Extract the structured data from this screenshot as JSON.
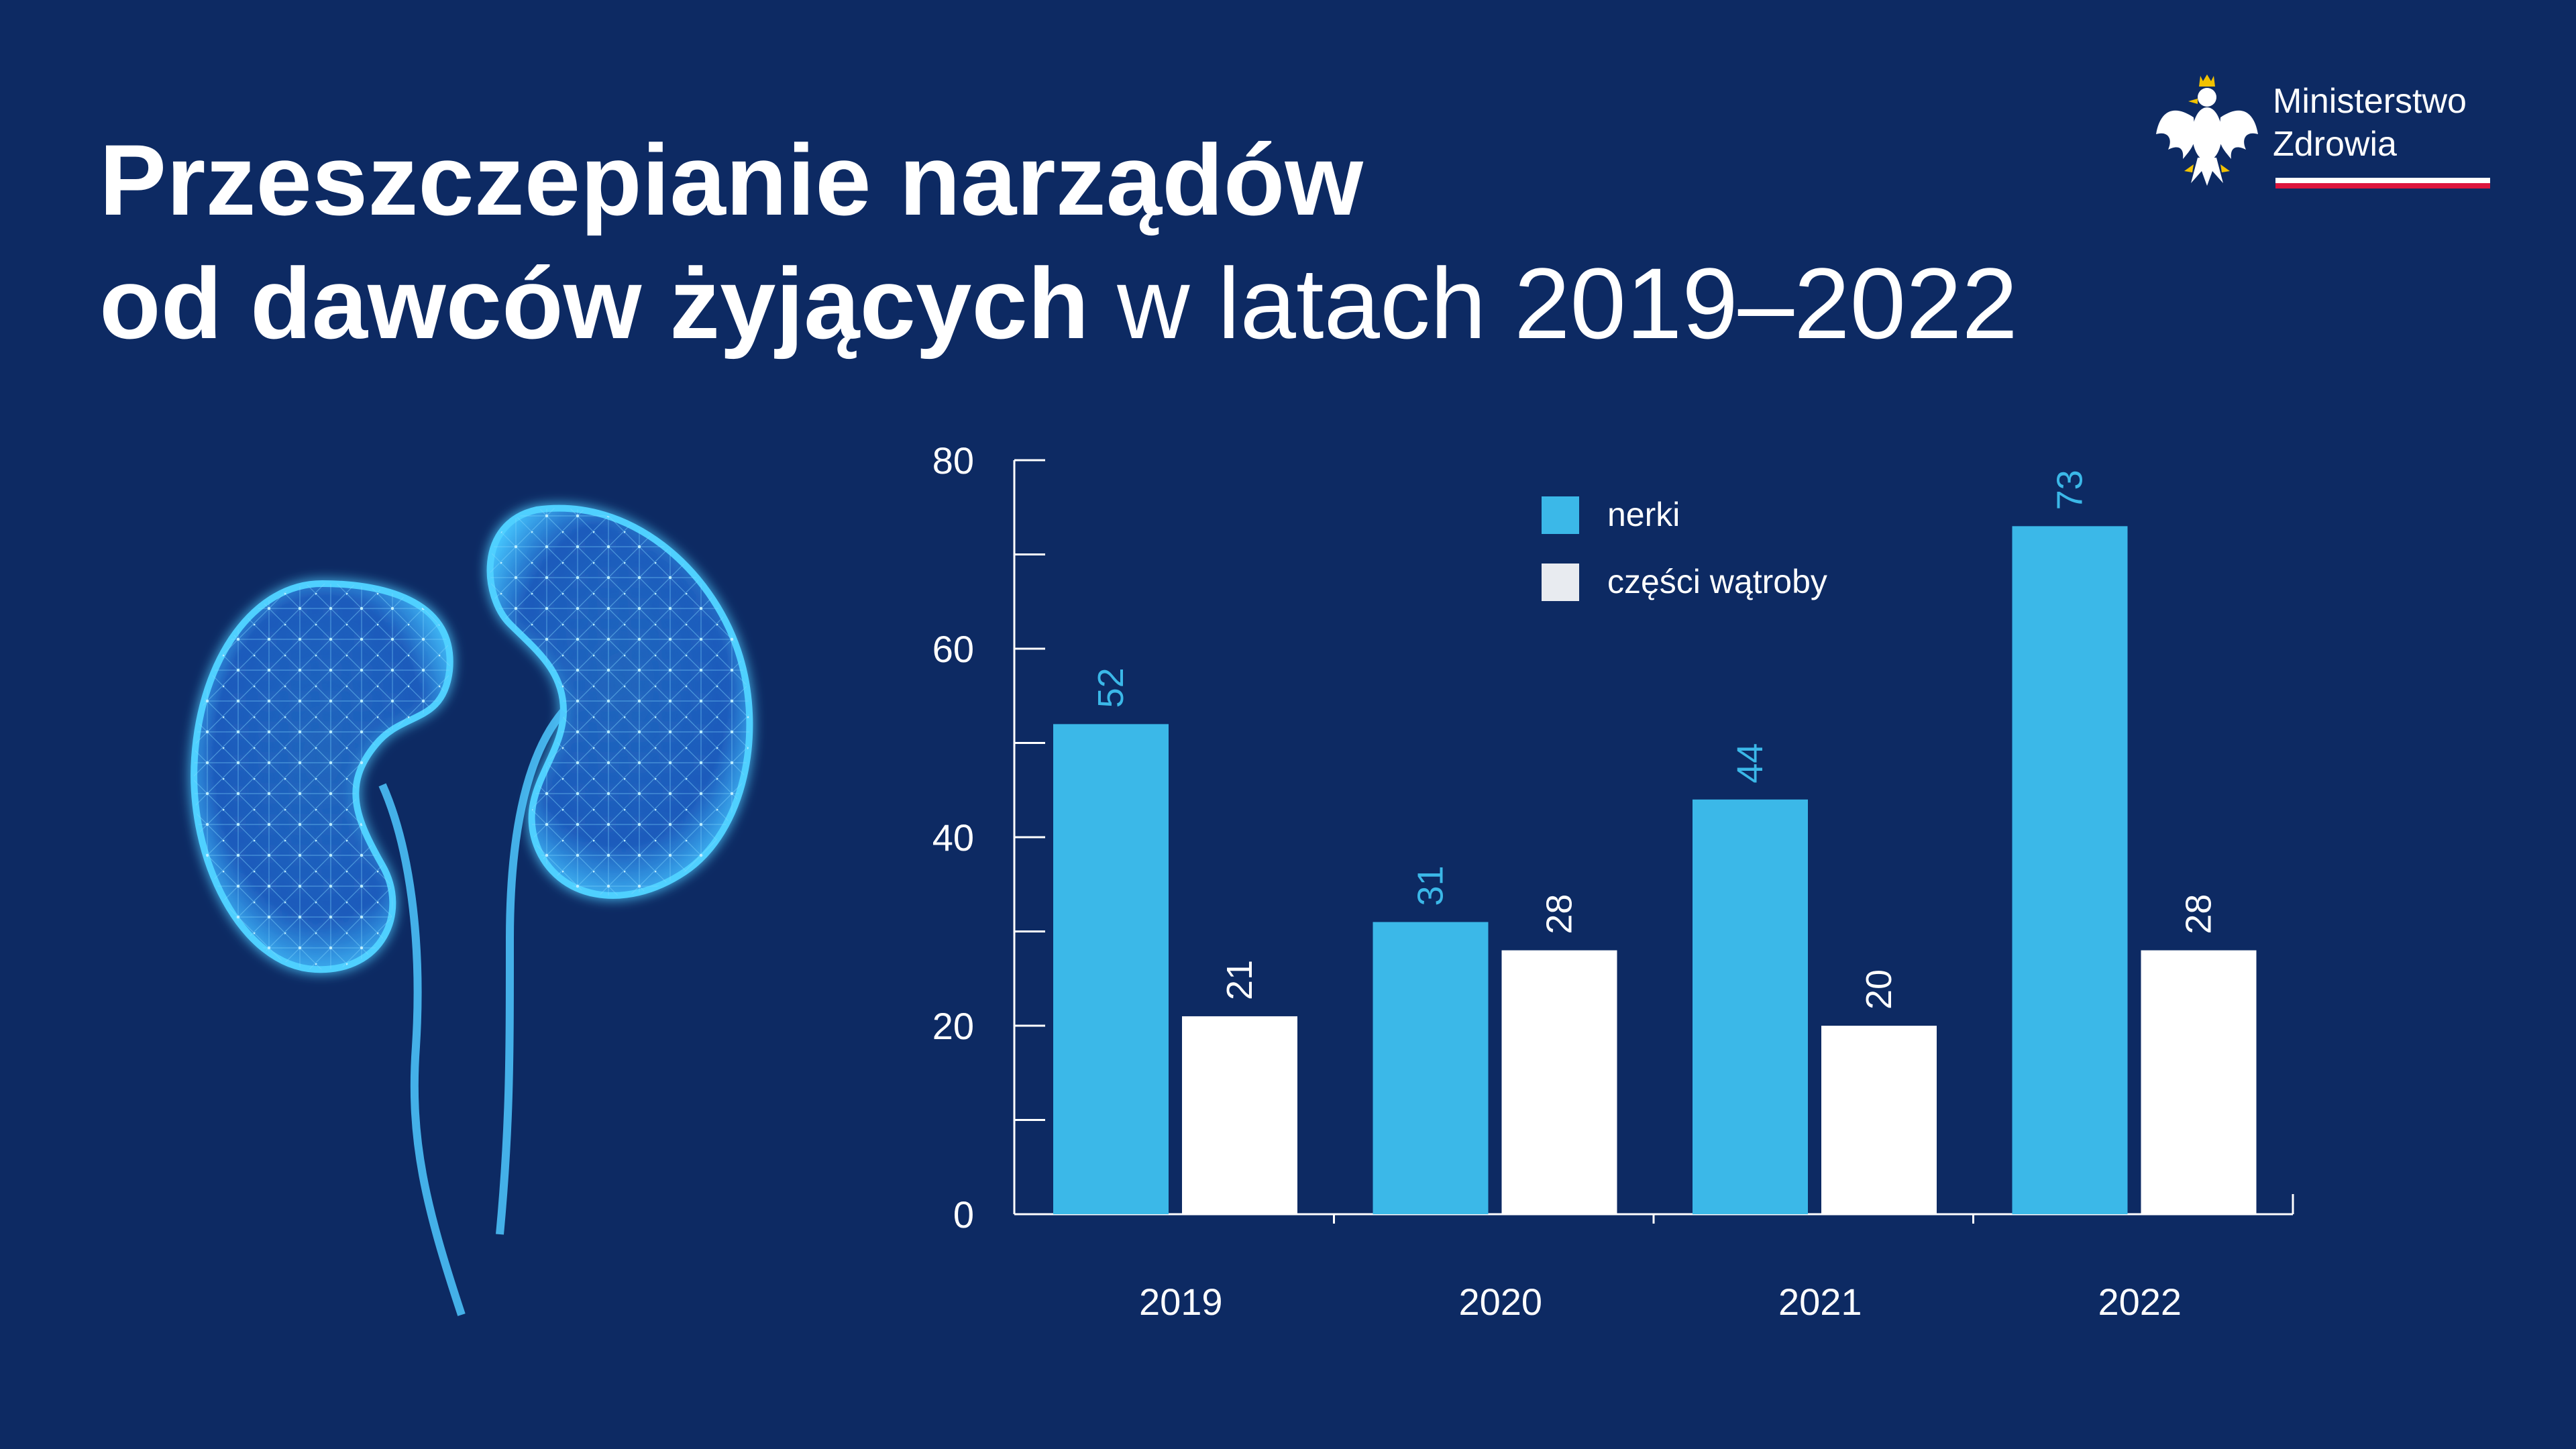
{
  "title": {
    "line1_bold": "Przeszczepianie narządów",
    "line2_bold": "od dawców żyjących",
    "line2_light": " w latach 2019–2022"
  },
  "logo": {
    "line1": "Ministerstwo",
    "line2": "Zdrowia",
    "eagle_icon": "polish-eagle-icon"
  },
  "illustration": {
    "icon": "kidneys-icon"
  },
  "colors": {
    "background": "#0d2a63",
    "nerki": "#3bb8e8",
    "watroba": "#ffffff",
    "axis": "#ffffff",
    "flag_red": "#dc143c"
  },
  "chart_data": {
    "type": "bar",
    "title": "Przeszczepianie narządów od dawców żyjących w latach 2019–2022",
    "categories": [
      "2019",
      "2020",
      "2021",
      "2022"
    ],
    "series": [
      {
        "name": "nerki",
        "values": [
          52,
          31,
          44,
          73
        ]
      },
      {
        "name": "części wątroby",
        "values": [
          21,
          28,
          20,
          28
        ]
      }
    ],
    "ylim": [
      0,
      80
    ],
    "yticks": [
      0,
      20,
      40,
      60,
      80
    ],
    "xlabel": "",
    "ylabel": "",
    "legend_position": "top-center",
    "grid": false
  }
}
